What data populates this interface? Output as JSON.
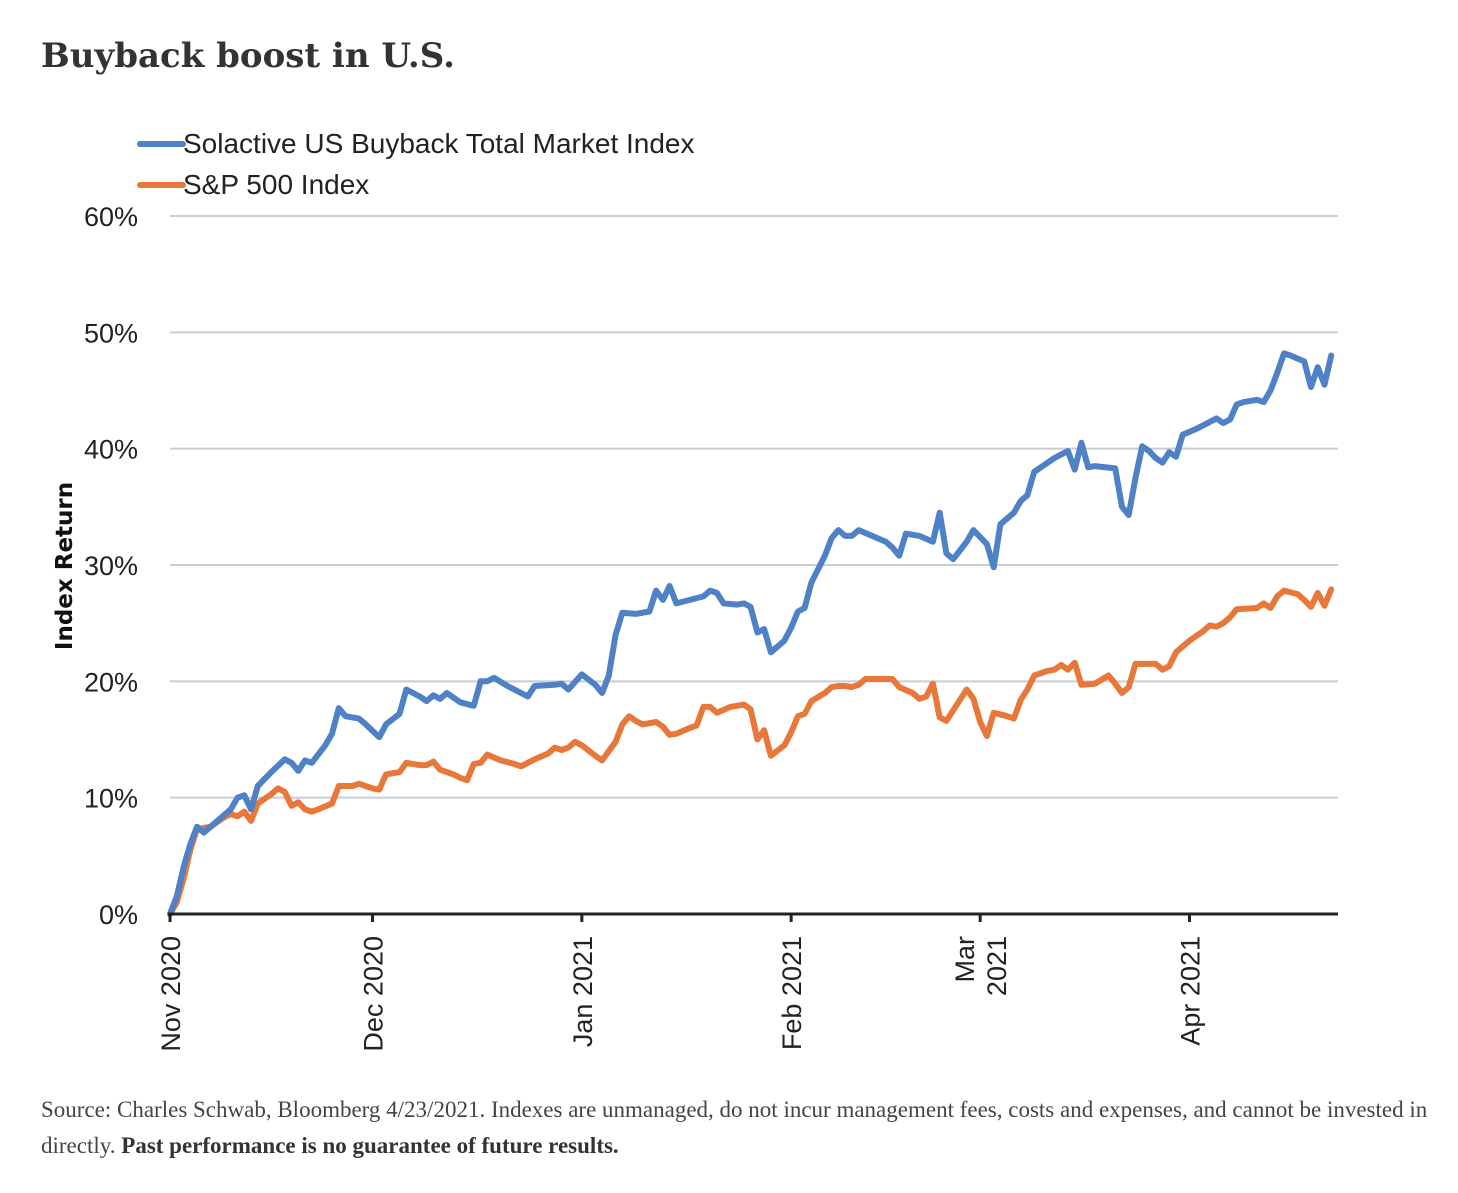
{
  "title": "Buyback boost in U.S.",
  "chart_data": {
    "type": "line",
    "ylabel": "Index Return",
    "ylim": [
      0,
      60
    ],
    "yticks": [
      0,
      10,
      20,
      30,
      40,
      50,
      60
    ],
    "ytick_labels": [
      "0%",
      "10%",
      "20%",
      "30%",
      "40%",
      "50%",
      "60%"
    ],
    "x_domain": [
      0,
      173
    ],
    "x_ticks": [
      {
        "pos": 0,
        "lines": [
          "Nov 2020"
        ]
      },
      {
        "pos": 30,
        "lines": [
          "Dec 2020"
        ]
      },
      {
        "pos": 61,
        "lines": [
          "Jan 2021"
        ]
      },
      {
        "pos": 92,
        "lines": [
          "Feb 2021"
        ]
      },
      {
        "pos": 120,
        "lines": [
          "Mar",
          "2021"
        ]
      },
      {
        "pos": 151,
        "lines": [
          "Apr 2021"
        ]
      }
    ],
    "grid": true,
    "legend_position": "top-left",
    "colors": {
      "buyback": "#4f81c7",
      "sp500": "#e8773a",
      "grid": "#c8cdd6",
      "axis": "#222222"
    },
    "series": [
      {
        "name": "Solactive US Buyback Total Market Index",
        "color": "#4f81c7",
        "points": [
          [
            0,
            0
          ],
          [
            1,
            1.5
          ],
          [
            2,
            4
          ],
          [
            3,
            6
          ],
          [
            4,
            7.5
          ],
          [
            5,
            7
          ],
          [
            6,
            7.5
          ],
          [
            8,
            8.5
          ],
          [
            9,
            9
          ],
          [
            10,
            10
          ],
          [
            11,
            10.2
          ],
          [
            12,
            9
          ],
          [
            13,
            11
          ],
          [
            15,
            12.2
          ],
          [
            17,
            13.3
          ],
          [
            18,
            13
          ],
          [
            19,
            12.3
          ],
          [
            20,
            13.2
          ],
          [
            21,
            13
          ],
          [
            23,
            14.5
          ],
          [
            24,
            15.5
          ],
          [
            25,
            17.7
          ],
          [
            26,
            17
          ],
          [
            28,
            16.8
          ],
          [
            29,
            16.3
          ],
          [
            31,
            15.2
          ],
          [
            32,
            16.3
          ],
          [
            34,
            17.2
          ],
          [
            35,
            19.3
          ],
          [
            37,
            18.7
          ],
          [
            38,
            18.3
          ],
          [
            39,
            18.8
          ],
          [
            40,
            18.5
          ],
          [
            41,
            19
          ],
          [
            43,
            18.2
          ],
          [
            45,
            17.9
          ],
          [
            46,
            20
          ],
          [
            47,
            20
          ],
          [
            48,
            20.3
          ],
          [
            50,
            19.6
          ],
          [
            51,
            19.3
          ],
          [
            53,
            18.7
          ],
          [
            54,
            19.6
          ],
          [
            57,
            19.7
          ],
          [
            58,
            19.8
          ],
          [
            59,
            19.3
          ],
          [
            61,
            20.6
          ],
          [
            63,
            19.7
          ],
          [
            64,
            19
          ],
          [
            65,
            20.5
          ],
          [
            66,
            24
          ],
          [
            67,
            25.9
          ],
          [
            69,
            25.8
          ],
          [
            71,
            26
          ],
          [
            72,
            27.8
          ],
          [
            73,
            27
          ],
          [
            74,
            28.2
          ],
          [
            75,
            26.7
          ],
          [
            77,
            27
          ],
          [
            79,
            27.3
          ],
          [
            80,
            27.8
          ],
          [
            81,
            27.6
          ],
          [
            82,
            26.7
          ],
          [
            84,
            26.6
          ],
          [
            85,
            26.7
          ],
          [
            86,
            26.4
          ],
          [
            87,
            24.2
          ],
          [
            88,
            24.5
          ],
          [
            89,
            22.5
          ],
          [
            91,
            23.5
          ],
          [
            92,
            24.6
          ],
          [
            93,
            26
          ],
          [
            94,
            26.3
          ],
          [
            95,
            28.5
          ],
          [
            97,
            30.8
          ],
          [
            98,
            32.3
          ],
          [
            99,
            33
          ],
          [
            100,
            32.5
          ],
          [
            101,
            32.5
          ],
          [
            102,
            33
          ],
          [
            104,
            32.5
          ],
          [
            106,
            32
          ],
          [
            107,
            31.5
          ],
          [
            108,
            30.8
          ],
          [
            109,
            32.7
          ],
          [
            111,
            32.5
          ],
          [
            113,
            32
          ],
          [
            114,
            34.5
          ],
          [
            115,
            31
          ],
          [
            116,
            30.5
          ],
          [
            118,
            32
          ],
          [
            119,
            33
          ],
          [
            121,
            31.8
          ],
          [
            122,
            29.8
          ],
          [
            123,
            33.5
          ],
          [
            125,
            34.5
          ],
          [
            126,
            35.5
          ],
          [
            127,
            36
          ],
          [
            128,
            38
          ],
          [
            130,
            38.8
          ],
          [
            131,
            39.2
          ],
          [
            133,
            39.8
          ],
          [
            134,
            38.2
          ],
          [
            135,
            40.5
          ],
          [
            136,
            38.4
          ],
          [
            137,
            38.5
          ],
          [
            140,
            38.3
          ],
          [
            141,
            35
          ],
          [
            142,
            34.3
          ],
          [
            143,
            37.5
          ],
          [
            144,
            40.2
          ],
          [
            145,
            39.8
          ],
          [
            146,
            39.2
          ],
          [
            147,
            38.8
          ],
          [
            148,
            39.7
          ],
          [
            149,
            39.3
          ],
          [
            150,
            41.2
          ],
          [
            152,
            41.7
          ],
          [
            153,
            42
          ],
          [
            155,
            42.6
          ],
          [
            156,
            42.2
          ],
          [
            157,
            42.5
          ],
          [
            158,
            43.8
          ],
          [
            159,
            44
          ],
          [
            161,
            44.2
          ],
          [
            162,
            44
          ],
          [
            163,
            45
          ],
          [
            164,
            46.5
          ],
          [
            165,
            48.2
          ],
          [
            166,
            48
          ],
          [
            168,
            47.5
          ],
          [
            169,
            45.3
          ],
          [
            170,
            47
          ],
          [
            171,
            45.5
          ],
          [
            172,
            48
          ]
        ]
      },
      {
        "name": "S&P 500 Index",
        "color": "#e8773a",
        "points": [
          [
            0,
            0
          ],
          [
            1,
            1
          ],
          [
            2,
            3
          ],
          [
            3,
            5.5
          ],
          [
            4,
            7.3
          ],
          [
            6,
            7.5
          ],
          [
            8,
            8.3
          ],
          [
            9,
            8.6
          ],
          [
            10,
            8.4
          ],
          [
            11,
            8.8
          ],
          [
            12,
            8
          ],
          [
            13,
            9.5
          ],
          [
            15,
            10.3
          ],
          [
            16,
            10.8
          ],
          [
            17,
            10.5
          ],
          [
            18,
            9.3
          ],
          [
            19,
            9.6
          ],
          [
            20,
            9
          ],
          [
            21,
            8.8
          ],
          [
            22,
            9
          ],
          [
            24,
            9.5
          ],
          [
            25,
            11
          ],
          [
            27,
            11
          ],
          [
            28,
            11.2
          ],
          [
            30,
            10.8
          ],
          [
            31,
            10.7
          ],
          [
            32,
            12
          ],
          [
            34,
            12.2
          ],
          [
            35,
            13
          ],
          [
            37,
            12.8
          ],
          [
            38,
            12.8
          ],
          [
            39,
            13.1
          ],
          [
            40,
            12.4
          ],
          [
            42,
            12
          ],
          [
            43,
            11.7
          ],
          [
            44,
            11.5
          ],
          [
            45,
            12.9
          ],
          [
            46,
            13
          ],
          [
            47,
            13.7
          ],
          [
            49,
            13.2
          ],
          [
            51,
            12.9
          ],
          [
            52,
            12.7
          ],
          [
            54,
            13.3
          ],
          [
            56,
            13.8
          ],
          [
            57,
            14.3
          ],
          [
            58,
            14.1
          ],
          [
            59,
            14.3
          ],
          [
            60,
            14.8
          ],
          [
            61,
            14.5
          ],
          [
            63,
            13.6
          ],
          [
            64,
            13.2
          ],
          [
            65,
            14
          ],
          [
            66,
            14.8
          ],
          [
            67,
            16.3
          ],
          [
            68,
            17
          ],
          [
            69,
            16.6
          ],
          [
            70,
            16.3
          ],
          [
            72,
            16.5
          ],
          [
            73,
            16.1
          ],
          [
            74,
            15.4
          ],
          [
            75,
            15.5
          ],
          [
            77,
            16
          ],
          [
            78,
            16.2
          ],
          [
            79,
            17.8
          ],
          [
            80,
            17.8
          ],
          [
            81,
            17.3
          ],
          [
            83,
            17.8
          ],
          [
            85,
            18
          ],
          [
            86,
            17.6
          ],
          [
            87,
            15
          ],
          [
            88,
            15.8
          ],
          [
            89,
            13.6
          ],
          [
            91,
            14.5
          ],
          [
            92,
            15.6
          ],
          [
            93,
            17
          ],
          [
            94,
            17.2
          ],
          [
            95,
            18.3
          ],
          [
            97,
            19
          ],
          [
            98,
            19.5
          ],
          [
            99,
            19.6
          ],
          [
            100,
            19.6
          ],
          [
            101,
            19.5
          ],
          [
            102,
            19.7
          ],
          [
            103,
            20.2
          ],
          [
            107,
            20.2
          ],
          [
            108,
            19.5
          ],
          [
            110,
            19
          ],
          [
            111,
            18.5
          ],
          [
            112,
            18.7
          ],
          [
            113,
            19.8
          ],
          [
            114,
            16.9
          ],
          [
            115,
            16.6
          ],
          [
            116,
            17.5
          ],
          [
            118,
            19.3
          ],
          [
            119,
            18.5
          ],
          [
            120,
            16.5
          ],
          [
            121,
            15.3
          ],
          [
            122,
            17.3
          ],
          [
            124,
            17
          ],
          [
            125,
            16.8
          ],
          [
            126,
            18.4
          ],
          [
            127,
            19.3
          ],
          [
            128,
            20.5
          ],
          [
            130,
            20.9
          ],
          [
            131,
            21
          ],
          [
            132,
            21.4
          ],
          [
            133,
            21
          ],
          [
            134,
            21.6
          ],
          [
            135,
            19.7
          ],
          [
            137,
            19.8
          ],
          [
            139,
            20.5
          ],
          [
            140,
            19.8
          ],
          [
            141,
            19
          ],
          [
            142,
            19.5
          ],
          [
            143,
            21.5
          ],
          [
            145,
            21.5
          ],
          [
            146,
            21.5
          ],
          [
            147,
            21
          ],
          [
            148,
            21.3
          ],
          [
            149,
            22.5
          ],
          [
            151,
            23.5
          ],
          [
            153,
            24.3
          ],
          [
            154,
            24.8
          ],
          [
            155,
            24.7
          ],
          [
            156,
            25
          ],
          [
            157,
            25.5
          ],
          [
            158,
            26.2
          ],
          [
            161,
            26.3
          ],
          [
            162,
            26.7
          ],
          [
            163,
            26.3
          ],
          [
            164,
            27.3
          ],
          [
            165,
            27.8
          ],
          [
            167,
            27.5
          ],
          [
            168,
            27
          ],
          [
            169,
            26.4
          ],
          [
            170,
            27.6
          ],
          [
            171,
            26.5
          ],
          [
            172,
            27.9
          ]
        ]
      }
    ]
  },
  "source": {
    "text": "Source: Charles Schwab, Bloomberg 4/23/2021. Indexes are unmanaged, do not incur management fees, costs and expenses, and cannot be invested in directly.",
    "disclaimer": "Past performance is no guarantee of future results."
  }
}
